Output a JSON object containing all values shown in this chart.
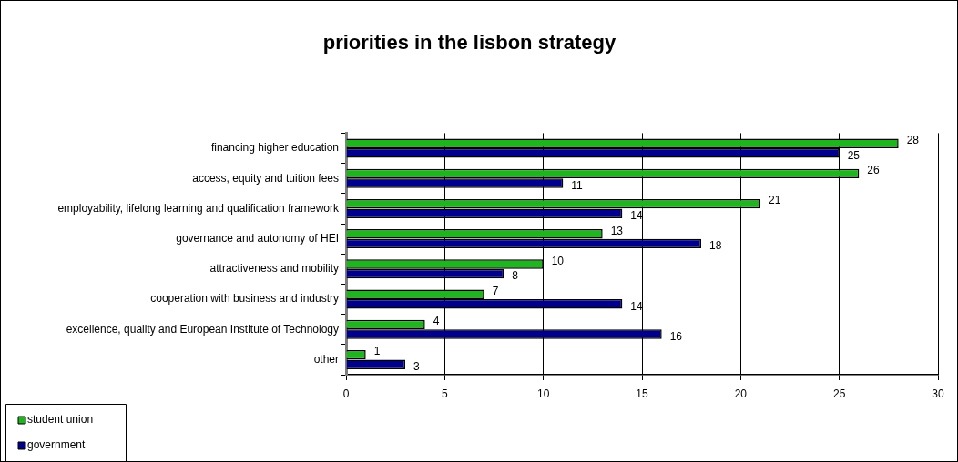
{
  "chart_data": {
    "type": "bar",
    "orientation": "horizontal",
    "title": "priorities in the lisbon strategy",
    "categories": [
      "financing higher education",
      "access, equity and tuition fees",
      "employability, lifelong learning and qualification framework",
      "governance and autonomy of HEI",
      "attractiveness and mobility",
      "cooperation with business and industry",
      "excellence, quality and European Institute of Technology",
      "other"
    ],
    "series": [
      {
        "name": "student union",
        "color": "#1fb51f",
        "values": [
          28,
          26,
          21,
          13,
          10,
          7,
          4,
          1
        ]
      },
      {
        "name": "government",
        "color": "#00008c",
        "values": [
          25,
          11,
          14,
          18,
          8,
          14,
          16,
          3
        ]
      }
    ],
    "xlim": [
      0,
      30
    ],
    "xticks": [
      0,
      5,
      10,
      15,
      20,
      25,
      30
    ],
    "grid": "x",
    "legend": "bottom left",
    "data_labels": true
  }
}
